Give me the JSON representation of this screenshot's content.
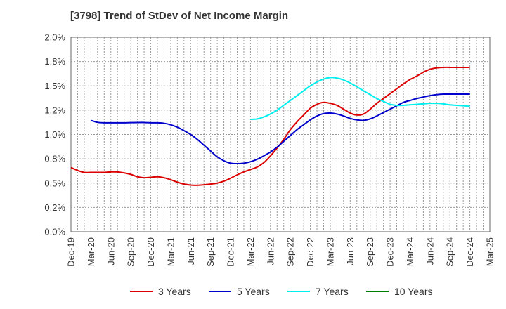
{
  "chart_data": {
    "type": "line",
    "title": "[3798]  Trend of StDev of Net Income Margin",
    "xlabel": "",
    "ylabel": "",
    "x_ticks": [
      "Dec-19",
      "Mar-20",
      "Jun-20",
      "Sep-20",
      "Dec-20",
      "Mar-21",
      "Jun-21",
      "Sep-21",
      "Dec-21",
      "Mar-22",
      "Jun-22",
      "Sep-22",
      "Dec-22",
      "Mar-23",
      "Jun-23",
      "Sep-23",
      "Dec-23",
      "Mar-24",
      "Jun-24",
      "Sep-24",
      "Dec-24",
      "Mar-25"
    ],
    "y_ticks": [
      "0.0%",
      "0.2%",
      "0.5%",
      "0.8%",
      "1.0%",
      "1.2%",
      "1.5%",
      "1.8%",
      "2.0%"
    ],
    "ylim": [
      0,
      2.0
    ],
    "y_unit": "%",
    "grid": true,
    "legend_position": "bottom",
    "series": [
      {
        "name": "3 Years",
        "color": "#dd0000",
        "x": [
          "Dec-19",
          "Jan-20",
          "Feb-20",
          "Mar-20",
          "Apr-20",
          "May-20",
          "Jun-20",
          "Jul-20",
          "Aug-20",
          "Sep-20",
          "Oct-20",
          "Nov-20",
          "Dec-20",
          "Jan-21",
          "Feb-21",
          "Mar-21",
          "Apr-21",
          "May-21",
          "Jun-21",
          "Jul-21",
          "Aug-21",
          "Sep-21",
          "Oct-21",
          "Nov-21",
          "Dec-21",
          "Jan-22",
          "Feb-22",
          "Mar-22",
          "Apr-22",
          "May-22",
          "Jun-22",
          "Jul-22",
          "Aug-22",
          "Sep-22",
          "Oct-22",
          "Nov-22",
          "Dec-22",
          "Jan-23",
          "Feb-23",
          "Mar-23",
          "Apr-23",
          "May-23",
          "Jun-23",
          "Jul-23",
          "Aug-23",
          "Sep-23",
          "Oct-23",
          "Nov-23",
          "Dec-23",
          "Jan-24",
          "Feb-24",
          "Mar-24",
          "Apr-24",
          "May-24",
          "Jun-24",
          "Jul-24",
          "Aug-24",
          "Sep-24",
          "Oct-24",
          "Nov-24",
          "Dec-24"
        ],
        "values": [
          0.66,
          0.63,
          0.61,
          0.61,
          0.61,
          0.61,
          0.615,
          0.615,
          0.605,
          0.59,
          0.565,
          0.555,
          0.56,
          0.565,
          0.555,
          0.535,
          0.51,
          0.49,
          0.48,
          0.478,
          0.483,
          0.49,
          0.5,
          0.52,
          0.55,
          0.585,
          0.615,
          0.64,
          0.665,
          0.71,
          0.78,
          0.86,
          0.95,
          1.05,
          1.13,
          1.2,
          1.27,
          1.31,
          1.33,
          1.32,
          1.3,
          1.26,
          1.22,
          1.2,
          1.21,
          1.26,
          1.32,
          1.37,
          1.42,
          1.47,
          1.52,
          1.565,
          1.6,
          1.64,
          1.67,
          1.685,
          1.69,
          1.69,
          1.69,
          1.69,
          1.69
        ]
      },
      {
        "name": "5 Years",
        "color": "#0000cc",
        "x": [
          "Mar-20",
          "Apr-20",
          "May-20",
          "Jun-20",
          "Jul-20",
          "Aug-20",
          "Sep-20",
          "Oct-20",
          "Nov-20",
          "Dec-20",
          "Jan-21",
          "Feb-21",
          "Mar-21",
          "Apr-21",
          "May-21",
          "Jun-21",
          "Jul-21",
          "Aug-21",
          "Sep-21",
          "Oct-21",
          "Nov-21",
          "Dec-21",
          "Jan-22",
          "Feb-22",
          "Mar-22",
          "Apr-22",
          "May-22",
          "Jun-22",
          "Jul-22",
          "Aug-22",
          "Sep-22",
          "Oct-22",
          "Nov-22",
          "Dec-22",
          "Jan-23",
          "Feb-23",
          "Mar-23",
          "Apr-23",
          "May-23",
          "Jun-23",
          "Jul-23",
          "Aug-23",
          "Sep-23",
          "Oct-23",
          "Nov-23",
          "Dec-23",
          "Jan-24",
          "Feb-24",
          "Mar-24",
          "Apr-24",
          "May-24",
          "Jun-24",
          "Jul-24",
          "Aug-24",
          "Sep-24",
          "Oct-24",
          "Nov-24",
          "Dec-24"
        ],
        "values": [
          1.145,
          1.125,
          1.12,
          1.12,
          1.12,
          1.12,
          1.122,
          1.123,
          1.123,
          1.12,
          1.12,
          1.115,
          1.1,
          1.075,
          1.04,
          1.0,
          0.95,
          0.89,
          0.83,
          0.77,
          0.73,
          0.705,
          0.7,
          0.705,
          0.72,
          0.745,
          0.78,
          0.82,
          0.87,
          0.93,
          0.99,
          1.05,
          1.1,
          1.15,
          1.19,
          1.215,
          1.22,
          1.21,
          1.19,
          1.165,
          1.15,
          1.145,
          1.16,
          1.19,
          1.225,
          1.26,
          1.295,
          1.33,
          1.35,
          1.37,
          1.385,
          1.4,
          1.41,
          1.415,
          1.415,
          1.415,
          1.415,
          1.415
        ]
      },
      {
        "name": "7 Years",
        "color": "#00eeee",
        "x": [
          "Mar-22",
          "Apr-22",
          "May-22",
          "Jun-22",
          "Jul-22",
          "Aug-22",
          "Sep-22",
          "Oct-22",
          "Nov-22",
          "Dec-22",
          "Jan-23",
          "Feb-23",
          "Mar-23",
          "Apr-23",
          "May-23",
          "Jun-23",
          "Jul-23",
          "Aug-23",
          "Sep-23",
          "Oct-23",
          "Nov-23",
          "Dec-23",
          "Jan-24",
          "Feb-24",
          "Mar-24",
          "Apr-24",
          "May-24",
          "Jun-24",
          "Jul-24",
          "Aug-24",
          "Sep-24",
          "Oct-24",
          "Nov-24",
          "Dec-24"
        ],
        "values": [
          1.155,
          1.16,
          1.18,
          1.21,
          1.25,
          1.3,
          1.35,
          1.4,
          1.45,
          1.5,
          1.54,
          1.57,
          1.585,
          1.58,
          1.56,
          1.53,
          1.49,
          1.45,
          1.41,
          1.37,
          1.34,
          1.31,
          1.3,
          1.3,
          1.305,
          1.31,
          1.315,
          1.32,
          1.32,
          1.315,
          1.305,
          1.3,
          1.295,
          1.29
        ]
      },
      {
        "name": "10 Years",
        "color": "#008000",
        "x": [],
        "values": []
      }
    ]
  }
}
